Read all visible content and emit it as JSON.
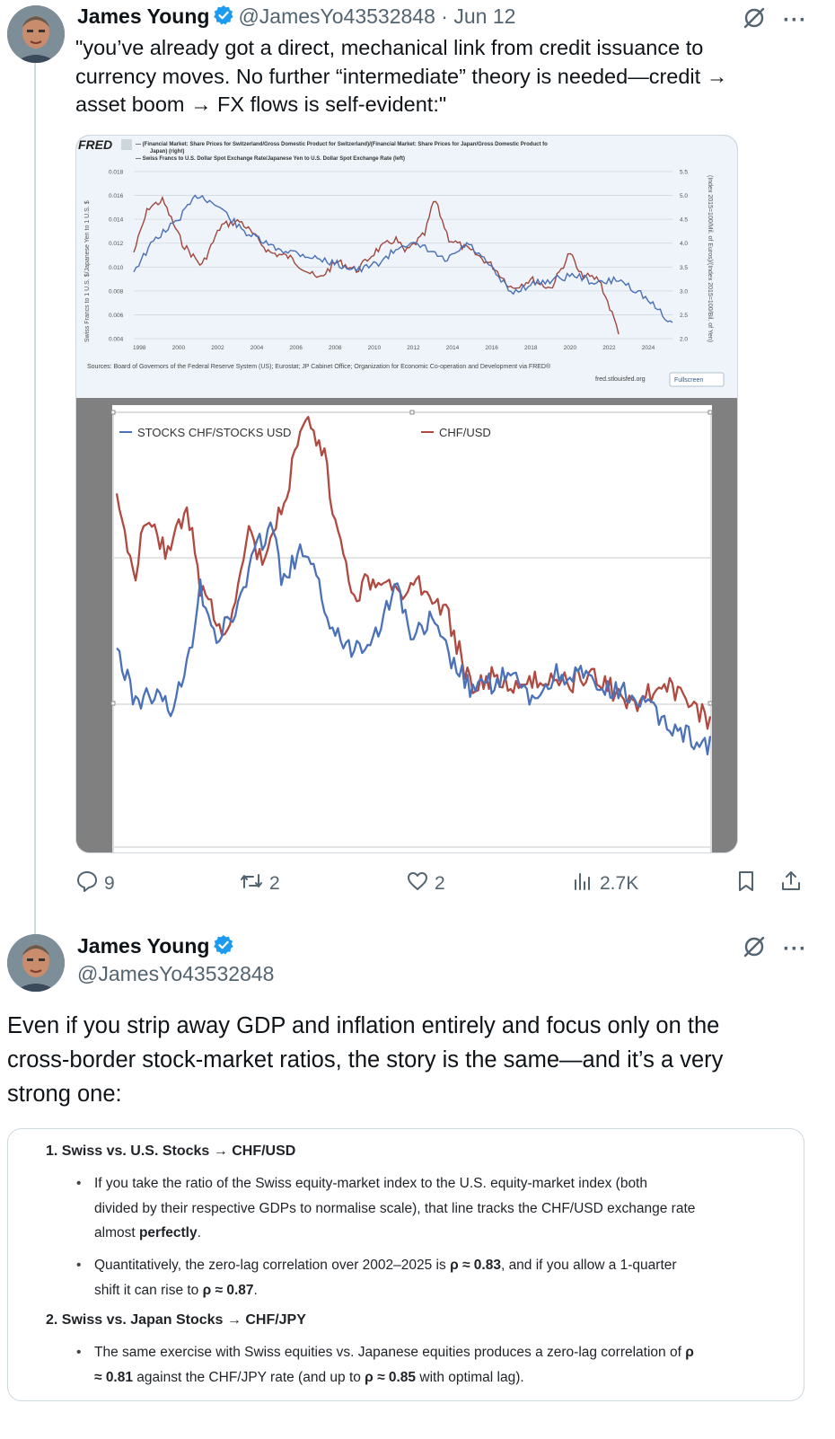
{
  "tweet1": {
    "name": "James Young",
    "handle": "@JamesYo43532848",
    "separator": "·",
    "date": "Jun 12",
    "text_lines": [
      "\"you’ve already got a direct, mechanical link from credit issuance to",
      "currency moves. No further “intermediate” theory is needed—credit →",
      "asset boom → FX flows is self-evident:\""
    ],
    "actions": {
      "replies": "9",
      "reposts": "2",
      "likes": "2",
      "views": "2.7K"
    }
  },
  "fred_chart": {
    "logo": "FRED",
    "legend_lines": [
      "— (Financial Market: Share Prices for Switzerland/Gross Domestic Product for Switzerland)/(Financial Market: Share Prices for Japan/Gross Domestic Product fo",
      "Japan) (right)",
      "— Swiss Francs to U.S. Dollar Spot Exchange Rate/Japanese Yen to U.S. Dollar Spot Exchange Rate (left)"
    ],
    "ylabel_left": "Swiss Francs to 1 U.S. $/Japanese Yen to 1 U.S. $",
    "ylabel_right": "(Index 2015=100/Mil. of Euros)/(Index 2015=100/Bil. of Yen)",
    "left_ticks": [
      "0.018",
      "0.016",
      "0.014",
      "0.012",
      "0.010",
      "0.008",
      "0.006",
      "0.004"
    ],
    "right_ticks": [
      "5.5",
      "5.0",
      "4.5",
      "4.0",
      "3.5",
      "3.0",
      "2.5",
      "2.0"
    ],
    "x_ticks": [
      "1998",
      "2000",
      "2002",
      "2004",
      "2006",
      "2008",
      "2010",
      "2012",
      "2014",
      "2016",
      "2018",
      "2020",
      "2022",
      "2024"
    ],
    "sources": "Sources: Board of Governors of the Federal Reserve System (US); Eurostat; JP Cabinet Office; Organization for Economic Co-operation and Development via FRED®",
    "site": "fred.stlouisfed.org",
    "fullscreen": "Fullscreen",
    "colors": {
      "ratio": "#a0483e",
      "fx": "#4a6fb5"
    }
  },
  "excel_chart": {
    "legend_blue": "STOCKS CHF/STOCKS USD",
    "legend_red": "CHF/USD",
    "colors": {
      "blue": "#4b72b8",
      "red": "#b04a40"
    }
  },
  "tweet2": {
    "name": "James Young",
    "handle": "@JamesYo43532848",
    "text_lines": [
      "Even if you strip away GDP and inflation entirely and focus only on the",
      "cross-border stock-market ratios, the story is the same—and it’s a very",
      "strong one:"
    ]
  },
  "card": {
    "h1": "1.  Swiss vs. U.S. Stocks → CHF/USD",
    "b1_lines": [
      "If you take the ratio of the Swiss equity-market index to the U.S. equity-market index (both",
      "divided by their respective GDPs to normalise scale), that line tracks the CHF/USD exchange rate"
    ],
    "b1_last_pre": "almost ",
    "b1_last_bold": "perfectly",
    "b1_last_post": ".",
    "b2_l1_pre": "Quantitatively, the zero-lag correlation over 2002–2025 is ",
    "b2_l1_bold": "ρ ≈ 0.83",
    "b2_l1_post": ", and if you allow a 1-quarter",
    "b2_l2_pre": "shift it can rise to ",
    "b2_l2_bold": "ρ ≈ 0.87",
    "b2_l2_post": ".",
    "h2": "2.  Swiss vs. Japan Stocks → CHF/JPY",
    "b3_l1_pre": "The same exercise with Swiss equities vs. Japanese equities produces a zero-lag correlation of ",
    "b3_l1_bold": "ρ",
    "b3_l2_bold": "≈ 0.81",
    "b3_l2_mid": " against the CHF/JPY rate (and up to ",
    "b3_l2_bold2": "ρ ≈ 0.85",
    "b3_l2_post": " with optimal lag)."
  }
}
